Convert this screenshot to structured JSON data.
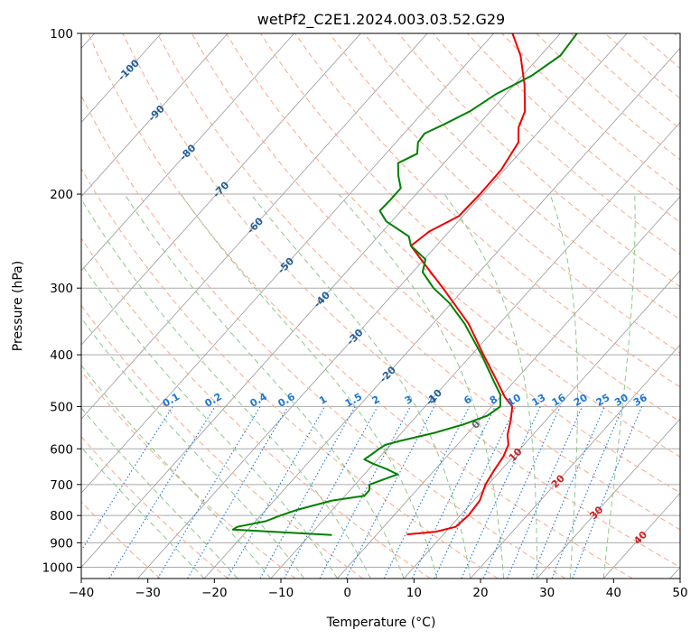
{
  "chart_data": {
    "type": "skew-t",
    "title": "wetPf2_C2E1.2024.003.03.52.G29",
    "xlabel": "Temperature (°C)",
    "ylabel": "Pressure (hPa)",
    "xlim": [
      -40,
      50
    ],
    "ylim": [
      1050,
      100
    ],
    "skew_degrees_per_decade": 72,
    "x_ticks": [
      {
        "value": -40,
        "label": "−40"
      },
      {
        "value": -30,
        "label": "−30"
      },
      {
        "value": -20,
        "label": "−20"
      },
      {
        "value": -10,
        "label": "−10"
      },
      {
        "value": 0,
        "label": "0"
      },
      {
        "value": 10,
        "label": "10"
      },
      {
        "value": 20,
        "label": "20"
      },
      {
        "value": 30,
        "label": "30"
      },
      {
        "value": 40,
        "label": "40"
      },
      {
        "value": 50,
        "label": "50"
      }
    ],
    "y_ticks": [
      {
        "value": 1000,
        "label": "1000"
      },
      {
        "value": 900,
        "label": "900"
      },
      {
        "value": 800,
        "label": "800"
      },
      {
        "value": 700,
        "label": "700"
      },
      {
        "value": 600,
        "label": "600"
      },
      {
        "value": 500,
        "label": "500"
      },
      {
        "value": 400,
        "label": "400"
      },
      {
        "value": 300,
        "label": "300"
      },
      {
        "value": 200,
        "label": "200"
      },
      {
        "value": 100,
        "label": "100"
      }
    ],
    "grid": true,
    "series": [
      {
        "name": "temperature",
        "color": "#ee0000",
        "points": [
          {
            "p": 868,
            "t": 4.5
          },
          {
            "p": 858,
            "t": 8.5
          },
          {
            "p": 840,
            "t": 10.8
          },
          {
            "p": 800,
            "t": 11.2
          },
          {
            "p": 750,
            "t": 10.9
          },
          {
            "p": 700,
            "t": 9.6
          },
          {
            "p": 660,
            "t": 9.0
          },
          {
            "p": 620,
            "t": 8.5
          },
          {
            "p": 590,
            "t": 7.7
          },
          {
            "p": 565,
            "t": 6.2
          },
          {
            "p": 530,
            "t": 4.7
          },
          {
            "p": 500,
            "t": 3.1
          },
          {
            "p": 480,
            "t": 0.7
          },
          {
            "p": 450,
            "t": -2.4
          },
          {
            "p": 400,
            "t": -8.2
          },
          {
            "p": 350,
            "t": -14.6
          },
          {
            "p": 300,
            "t": -23.3
          },
          {
            "p": 270,
            "t": -29.4
          },
          {
            "p": 250,
            "t": -33.8
          },
          {
            "p": 235,
            "t": -33.0
          },
          {
            "p": 220,
            "t": -30.6
          },
          {
            "p": 200,
            "t": -30.4
          },
          {
            "p": 180,
            "t": -30.5
          },
          {
            "p": 160,
            "t": -31.6
          },
          {
            "p": 150,
            "t": -33.6
          },
          {
            "p": 140,
            "t": -34.8
          },
          {
            "p": 125,
            "t": -38.4
          },
          {
            "p": 110,
            "t": -43.0
          },
          {
            "p": 100,
            "t": -47.2
          }
        ]
      },
      {
        "name": "dewpoint",
        "color": "#008000",
        "points": [
          {
            "p": 870,
            "t": -6.7
          },
          {
            "p": 850,
            "t": -22.3
          },
          {
            "p": 840,
            "t": -22.0
          },
          {
            "p": 820,
            "t": -18.5
          },
          {
            "p": 800,
            "t": -17.0
          },
          {
            "p": 780,
            "t": -15.2
          },
          {
            "p": 750,
            "t": -11.3
          },
          {
            "p": 735,
            "t": -7.1
          },
          {
            "p": 718,
            "t": -7.1
          },
          {
            "p": 700,
            "t": -7.8
          },
          {
            "p": 690,
            "t": -6.9
          },
          {
            "p": 670,
            "t": -5.0
          },
          {
            "p": 655,
            "t": -7.3
          },
          {
            "p": 640,
            "t": -10.1
          },
          {
            "p": 628,
            "t": -12.0
          },
          {
            "p": 615,
            "t": -11.6
          },
          {
            "p": 600,
            "t": -11.2
          },
          {
            "p": 590,
            "t": -10.8
          },
          {
            "p": 580,
            "t": -9.1
          },
          {
            "p": 560,
            "t": -5.0
          },
          {
            "p": 540,
            "t": -1.8
          },
          {
            "p": 520,
            "t": 0.6
          },
          {
            "p": 500,
            "t": 1.3
          },
          {
            "p": 475,
            "t": -0.3
          },
          {
            "p": 450,
            "t": -2.9
          },
          {
            "p": 400,
            "t": -8.5
          },
          {
            "p": 350,
            "t": -15.2
          },
          {
            "p": 320,
            "t": -20.3
          },
          {
            "p": 300,
            "t": -24.7
          },
          {
            "p": 280,
            "t": -28.5
          },
          {
            "p": 265,
            "t": -29.8
          },
          {
            "p": 250,
            "t": -33.8
          },
          {
            "p": 240,
            "t": -35.4
          },
          {
            "p": 225,
            "t": -40.8
          },
          {
            "p": 215,
            "t": -43.2
          },
          {
            "p": 205,
            "t": -43.1
          },
          {
            "p": 195,
            "t": -43.1
          },
          {
            "p": 185,
            "t": -45.1
          },
          {
            "p": 175,
            "t": -46.9
          },
          {
            "p": 168,
            "t": -45.3
          },
          {
            "p": 160,
            "t": -46.7
          },
          {
            "p": 154,
            "t": -46.9
          },
          {
            "p": 148,
            "t": -45.2
          },
          {
            "p": 140,
            "t": -43.1
          },
          {
            "p": 130,
            "t": -41.5
          },
          {
            "p": 120,
            "t": -38.6
          },
          {
            "p": 110,
            "t": -37.0
          },
          {
            "p": 100,
            "t": -37.5
          }
        ]
      }
    ],
    "dry_adiabat_theta_c": [
      -30,
      -20,
      -10,
      0,
      10,
      20,
      30,
      40,
      50,
      60,
      70,
      80,
      90,
      100,
      110,
      120,
      130,
      140,
      150,
      160,
      170,
      180,
      190,
      200,
      210,
      220,
      230
    ],
    "moist_adiabat_t_c": [
      -20,
      -15,
      -10,
      -5,
      0,
      5,
      10,
      15,
      20,
      25,
      30,
      35,
      40
    ],
    "mixing_ratio_lines": [
      {
        "w": 0.1,
        "label": "0.1"
      },
      {
        "w": 0.2,
        "label": "0.2"
      },
      {
        "w": 0.4,
        "label": "0.4"
      },
      {
        "w": 0.6,
        "label": "0.6"
      },
      {
        "w": 1,
        "label": "1"
      },
      {
        "w": 1.5,
        "label": "1.5"
      },
      {
        "w": 2,
        "label": "2"
      },
      {
        "w": 3,
        "label": "3"
      },
      {
        "w": 4,
        "label": "4"
      },
      {
        "w": 6,
        "label": "6"
      },
      {
        "w": 8,
        "label": "8"
      },
      {
        "w": 10,
        "label": "10"
      },
      {
        "w": 13,
        "label": "13"
      },
      {
        "w": 16,
        "label": "16"
      },
      {
        "w": 20,
        "label": "20"
      },
      {
        "w": 25,
        "label": "25"
      },
      {
        "w": 30,
        "label": "30"
      },
      {
        "w": 36,
        "label": "36"
      }
    ],
    "mixing_ratio_label_pressure": 500,
    "isotherm_labels": [
      {
        "t": -100,
        "p": 117,
        "label": "-100"
      },
      {
        "t": -90,
        "p": 141,
        "label": "-90"
      },
      {
        "t": -80,
        "p": 167,
        "label": "-80"
      },
      {
        "t": -70,
        "p": 196,
        "label": "-70"
      },
      {
        "t": -60,
        "p": 229,
        "label": "-60"
      },
      {
        "t": -50,
        "p": 272,
        "label": "-50"
      },
      {
        "t": -40,
        "p": 315,
        "label": "-40"
      },
      {
        "t": -30,
        "p": 370,
        "label": "-30"
      },
      {
        "t": -20,
        "p": 435,
        "label": "-20"
      },
      {
        "t": -10,
        "p": 480,
        "label": "-10"
      },
      {
        "t": 0,
        "p": 540,
        "label": "0"
      },
      {
        "t": 10,
        "p": 615,
        "label": "10"
      },
      {
        "t": 20,
        "p": 690,
        "label": "20"
      },
      {
        "t": 30,
        "p": 790,
        "label": "30"
      },
      {
        "t": 40,
        "p": 880,
        "label": "40"
      }
    ],
    "colors": {
      "temperature": "#ee0000",
      "dewpoint": "#008000",
      "isotherm": "#999999",
      "isobar": "#aaaaaa",
      "dry_adiabat": "#f8a98b",
      "moist_adiabat": "#8cc88c",
      "mixing_ratio": "#1f77d4",
      "isotherm_cold_label": "#1f5f99",
      "isotherm_warm_label": "#cc2222",
      "isotherm_zero_label": "#666666",
      "curved_dry_adiabat": "#d8c0a0"
    }
  }
}
